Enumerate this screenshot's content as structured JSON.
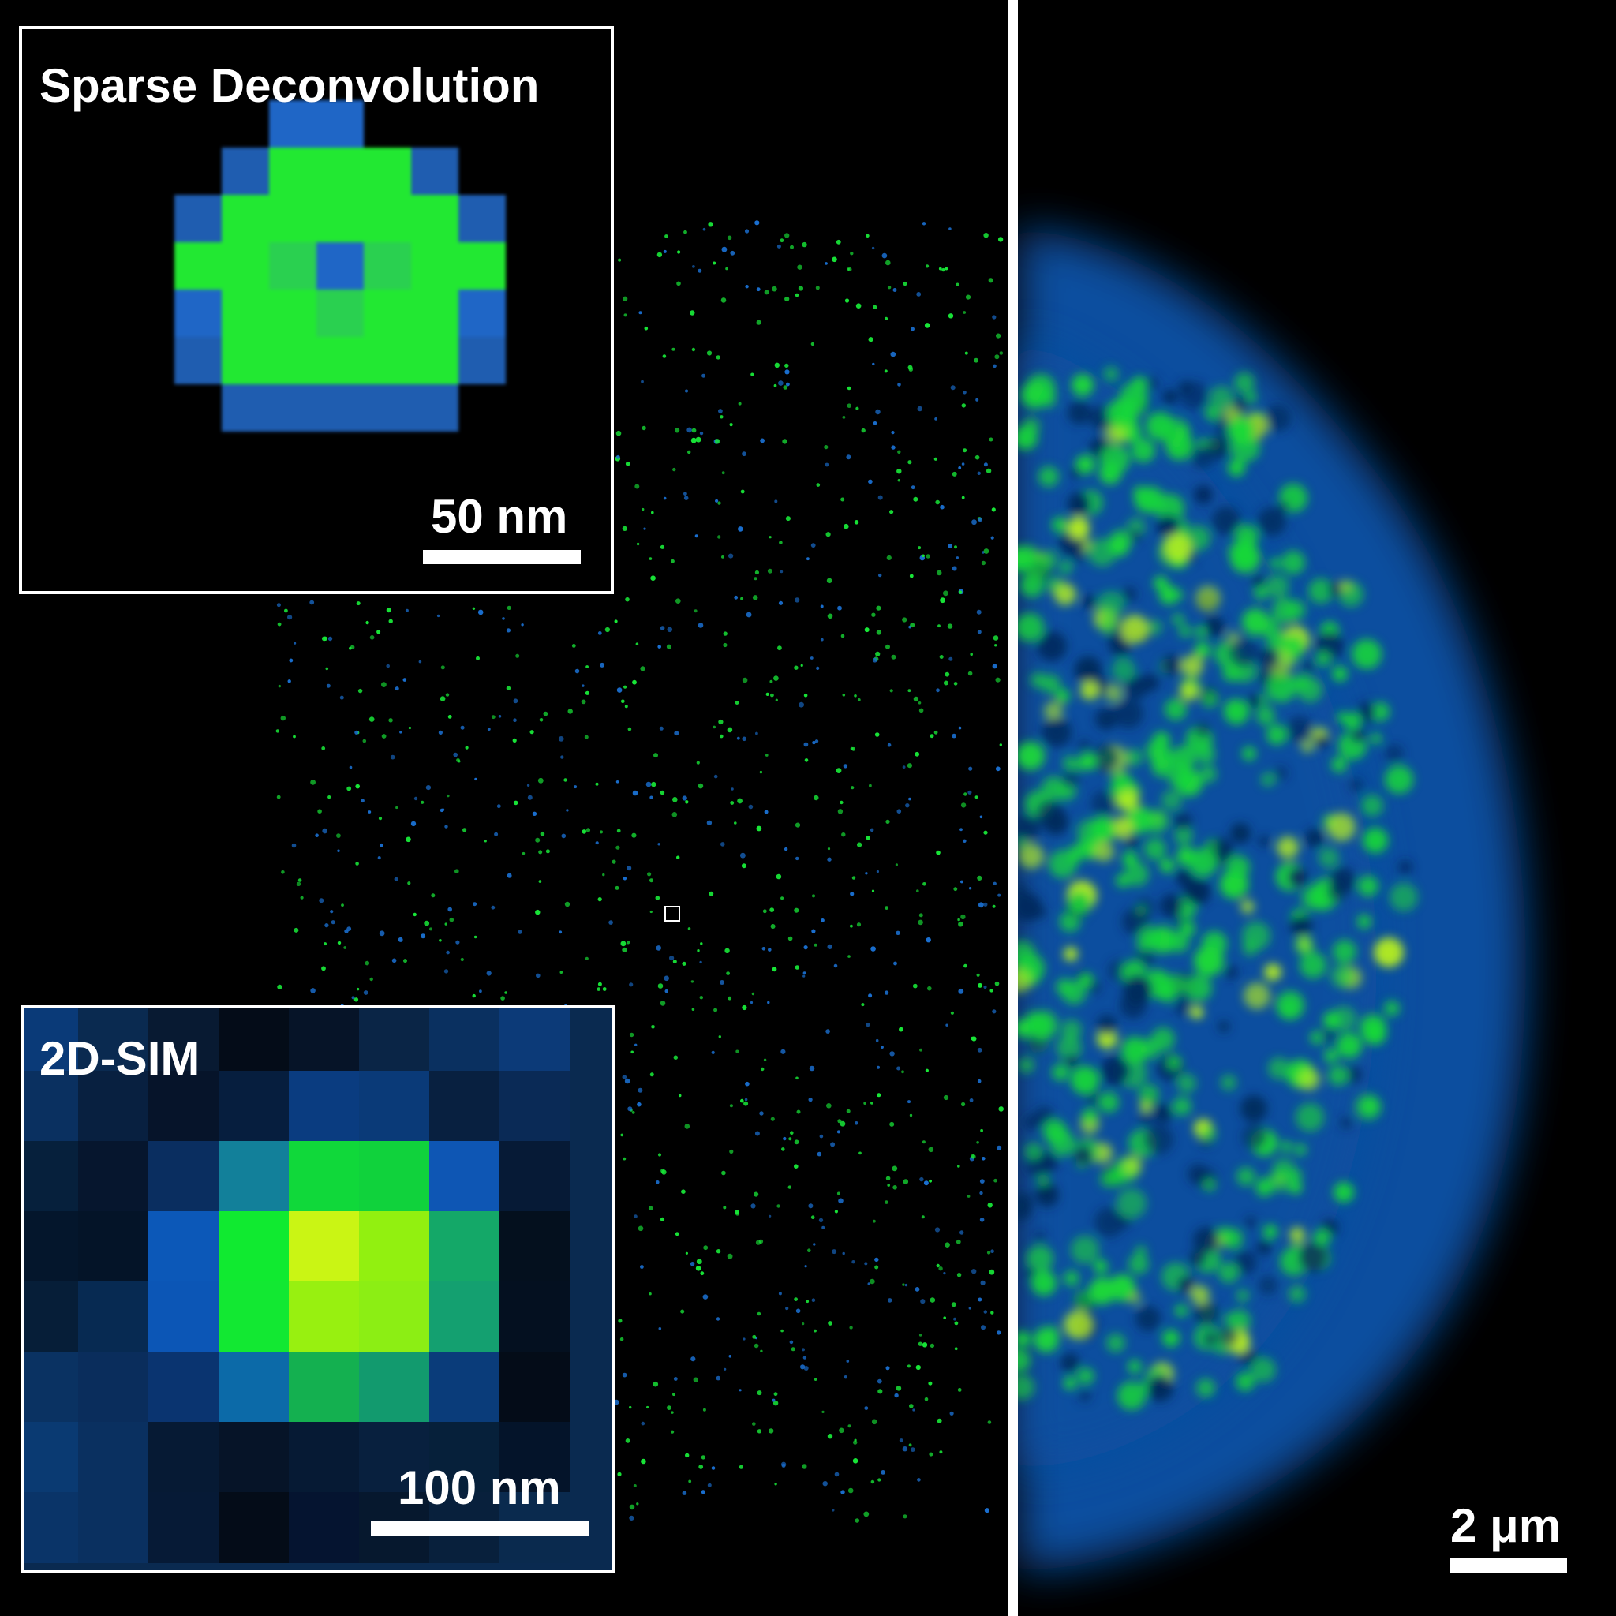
{
  "panels": {
    "left": {
      "inset_top": {
        "label": "Sparse Deconvolution",
        "scale_label": "50 nm"
      },
      "inset_bottom": {
        "label": "2D-SIM",
        "scale_label": "100 nm"
      }
    },
    "right": {
      "scale_label": "2 μm"
    }
  },
  "colors": {
    "background": "#000000",
    "puncta_green": "#18e838",
    "puncta_blue": "#1a6fd0",
    "border": "#ffffff"
  }
}
